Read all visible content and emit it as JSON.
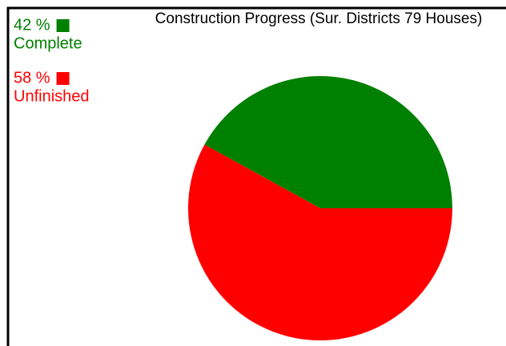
{
  "chart_data": {
    "type": "pie",
    "title": "Construction Progress (Sur. Districts 79 Houses)",
    "categories": [
      "Complete",
      "Unfinished"
    ],
    "values": [
      42,
      58
    ],
    "value_labels": [
      "42 %",
      "58 %"
    ],
    "colors": [
      "#008000",
      "#ff0000"
    ],
    "legend": "top-left"
  }
}
